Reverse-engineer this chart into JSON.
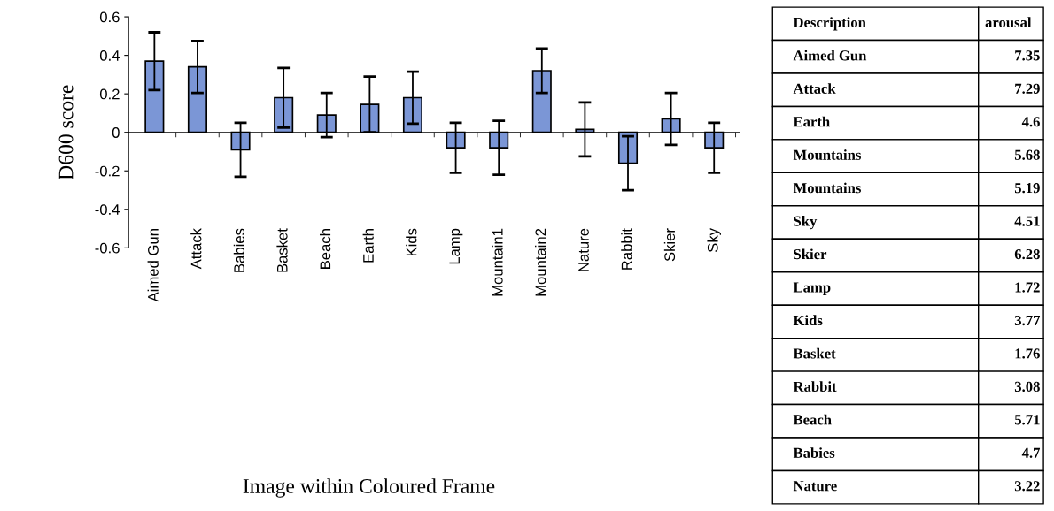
{
  "chart_data": [
    {
      "type": "bar",
      "xlabel": "Image within Coloured Frame",
      "ylabel": "D600 score",
      "categories": [
        "Aimed Gun",
        "Attack",
        "Babies",
        "Basket",
        "Beach",
        "Earth",
        "Kids",
        "Lamp",
        "Mountain1",
        "Mountain2",
        "Nature",
        "Rabbit",
        "Skier",
        "Sky"
      ],
      "values": [
        0.37,
        0.34,
        -0.09,
        0.18,
        0.09,
        0.145,
        0.18,
        -0.08,
        -0.08,
        0.32,
        0.015,
        -0.16,
        0.07,
        -0.08
      ],
      "errors": [
        0.15,
        0.135,
        0.14,
        0.155,
        0.115,
        0.145,
        0.135,
        0.13,
        0.14,
        0.115,
        0.14,
        0.14,
        0.135,
        0.13
      ],
      "color": "#7b96d6",
      "ylim": [
        -0.6,
        0.6
      ],
      "yticks": [
        -0.6,
        -0.4,
        -0.2,
        0,
        0.2,
        0.4,
        0.6
      ]
    },
    {
      "type": "other",
      "xlabel": "Description",
      "ylabel": "arousal",
      "data_labels": true,
      "categories": [
        "Aimed Gun",
        "Attack",
        "Earth",
        "Mountains",
        "Mountains",
        "Sky",
        "Skier",
        "Lamp",
        "Kids",
        "Basket",
        "Rabbit",
        "Beach",
        "Babies",
        "Nature"
      ],
      "values": [
        7.35,
        7.29,
        4.6,
        5.68,
        5.19,
        4.51,
        6.28,
        1.72,
        3.77,
        1.76,
        3.08,
        5.71,
        4.7,
        3.22
      ]
    }
  ]
}
